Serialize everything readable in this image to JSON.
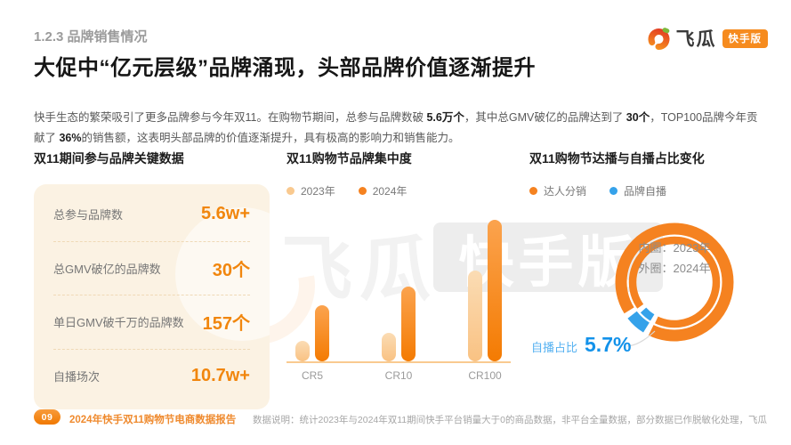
{
  "header": {
    "section_label": "1.2.3 品牌销售情况",
    "logo_text": "飞瓜",
    "logo_badge": "快手版"
  },
  "title": "大促中“亿元层级”品牌涌现，头部品牌价值逐渐提升",
  "paragraph": {
    "segments": [
      {
        "text": "快手生态的繁荣吸引了更多品牌参与今年双11。在购物节期间，总参与品牌数破 ",
        "bold": false
      },
      {
        "text": "5.6万个",
        "bold": true
      },
      {
        "text": "，其中总GMV破亿的品牌达到了 ",
        "bold": false
      },
      {
        "text": "30个",
        "bold": true
      },
      {
        "text": "，TOP100品牌今年贡献了 ",
        "bold": false
      },
      {
        "text": "36%",
        "bold": true
      },
      {
        "text": "的销售额，这表明头部品牌的价值逐渐提升，具有极高的影响力和销售能力。",
        "bold": false
      }
    ]
  },
  "key_data": {
    "title": "双11期间参与品牌关键数据",
    "rows": [
      {
        "label": "总参与品牌数",
        "value": "5.6w+"
      },
      {
        "label": "总GMV破亿的品牌数",
        "value": "30个"
      },
      {
        "label": "单日GMV破千万的品牌数",
        "value": "157个"
      },
      {
        "label": "自播场次",
        "value": "10.7w+"
      }
    ]
  },
  "watermark": {
    "text_left": "飞瓜",
    "text_right": "快手版"
  },
  "colors": {
    "orange": "#F58220",
    "light_orange": "#F9C285",
    "blue": "#35A2EA",
    "card_bg": "#FBF2E3",
    "value_orange": "#F1860D"
  },
  "chart_data": [
    {
      "type": "bar",
      "title": "双11购物节品牌集中度",
      "categories": [
        "CR5",
        "CR10",
        "CR100"
      ],
      "series": [
        {
          "name": "2023年",
          "color": "#F9C98F",
          "values": [
            5.2,
            7.2,
            23
          ]
        },
        {
          "name": "2024年",
          "color": "#F58220",
          "values": [
            14.2,
            19.1,
            36
          ]
        }
      ],
      "note": "values estimated from bar heights; no data labels shown in chart",
      "ylim": [
        0,
        38
      ],
      "grid": false,
      "legend_position": "top"
    },
    {
      "type": "pie",
      "title": "双11购物节达播与自播占比变化",
      "legend": [
        {
          "label": "达人分销",
          "color": "#F58220"
        },
        {
          "label": "品牌自播",
          "color": "#35A2EA"
        }
      ],
      "rings": [
        {
          "name": "内圈 2023年",
          "slices": [
            {
              "label": "达人分销",
              "value": 95.5
            },
            {
              "label": "品牌自播",
              "value": 4.5
            }
          ]
        },
        {
          "name": "外圈 2024年",
          "slices": [
            {
              "label": "达人分销",
              "value": 94.3
            },
            {
              "label": "品牌自播",
              "value": 5.7
            }
          ]
        }
      ],
      "center_lines": [
        "内圈：2023年",
        "外圈：2024年"
      ],
      "callout": {
        "label": "自播占比",
        "value": "5.7%"
      },
      "note": "inner-ring blue share estimated; only 5.7% labeled"
    }
  ],
  "footer": {
    "page_number": "09",
    "report_title": "2024年快手双11购物节电商数据报告",
    "data_note": "数据说明：统计2023年与2024年双11期间快手平台销量大于0的商品数据，非平台全量数据，部分数据已作脱敏化处理，飞瓜"
  }
}
